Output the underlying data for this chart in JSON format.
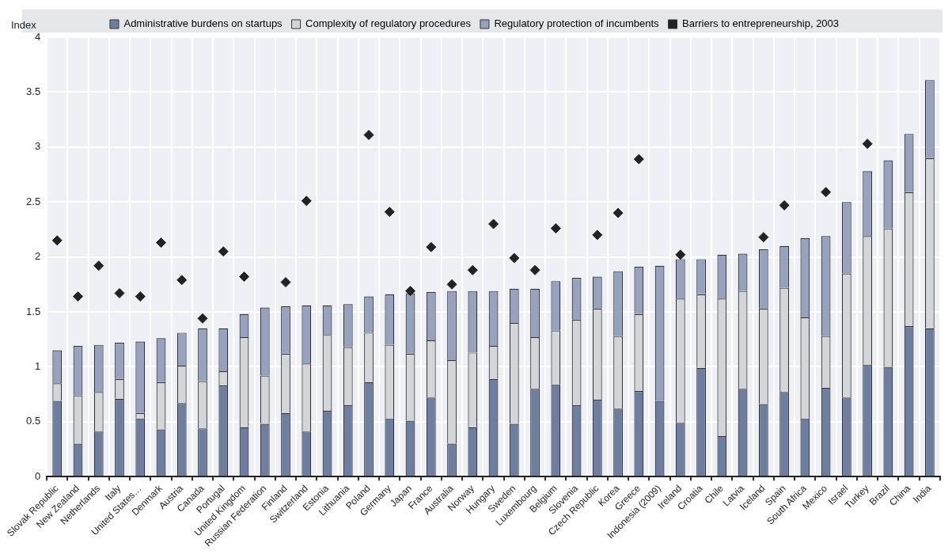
{
  "chart_data": {
    "type": "bar",
    "stacked": true,
    "ylabel": "Index",
    "legend": "top",
    "grid": true,
    "marker": "diamond",
    "ylim": [
      0,
      4
    ],
    "yticks": [
      0,
      0.5,
      1,
      1.5,
      2,
      2.5,
      3,
      3.5,
      4
    ],
    "categories": [
      "Slovak Republic",
      "New Zealand",
      "Netherlands",
      "Italy",
      "United States…",
      "Denmark",
      "Austria",
      "Canada",
      "Portugal",
      "United Kingdom",
      "Russian Federation",
      "Finland",
      "Switzerland",
      "Estonia",
      "Lithuania",
      "Poland",
      "Germany",
      "Japan",
      "France",
      "Australia",
      "Norway",
      "Hungary",
      "Sweden",
      "Luxembourg",
      "Belgium",
      "Slovenia",
      "Czech Republic",
      "Korea",
      "Greece",
      "Indonesia (2009)",
      "Ireland",
      "Croatia",
      "Chile",
      "Latvia",
      "Iceland",
      "Spain",
      "South Africa",
      "Mexico",
      "Israel",
      "Turkey",
      "Brazil",
      "China",
      "India"
    ],
    "series": [
      {
        "name": "Administrative burdens on startups",
        "color": "#6e7ea0",
        "values": [
          0.69,
          0.3,
          0.41,
          0.71,
          0.53,
          0.43,
          0.67,
          0.44,
          0.83,
          0.45,
          0.48,
          0.58,
          0.41,
          0.6,
          0.65,
          0.86,
          0.53,
          0.51,
          0.72,
          0.3,
          0.45,
          0.89,
          0.48,
          0.8,
          0.84,
          0.65,
          0.7,
          0.62,
          0.78,
          0.69,
          0.49,
          0.99,
          0.37,
          0.8,
          0.66,
          0.77,
          0.53,
          0.81,
          0.72,
          1.02,
          1.0,
          1.37,
          1.35
        ]
      },
      {
        "name": "Complexity of regulatory procedures",
        "color": "#d4d5d8",
        "values": [
          0.16,
          0.44,
          0.36,
          0.18,
          0.05,
          0.43,
          0.34,
          0.43,
          0.13,
          0.82,
          0.44,
          0.54,
          0.62,
          0.69,
          0.53,
          0.45,
          0.67,
          0.61,
          0.52,
          0.76,
          0.68,
          0.3,
          0.92,
          0.47,
          0.49,
          0.78,
          0.83,
          0.66,
          0.7,
          0,
          1.13,
          0.67,
          1.25,
          0.89,
          0.87,
          0.95,
          0.92,
          0.47,
          1.13,
          1.17,
          1.26,
          1.22,
          1.55
        ]
      },
      {
        "name": "Regulatory protection of incumbents",
        "color": "#97a2bf",
        "values": [
          0.3,
          0.45,
          0.43,
          0.33,
          0.65,
          0.4,
          0.3,
          0.48,
          0.39,
          0.21,
          0.62,
          0.43,
          0.53,
          0.27,
          0.39,
          0.33,
          0.46,
          0.55,
          0.44,
          0.63,
          0.56,
          0.5,
          0.31,
          0.44,
          0.45,
          0.38,
          0.29,
          0.59,
          0.43,
          1.23,
          0.36,
          0.32,
          0.4,
          0.34,
          0.54,
          0.38,
          0.72,
          0.91,
          0.65,
          0.59,
          0.62,
          0.53,
          0.71
        ]
      },
      {
        "name": "Barriers to entrepreneurship, 2003",
        "type": "scatter",
        "color": "#222222",
        "values": [
          2.15,
          1.64,
          1.92,
          1.67,
          1.64,
          2.13,
          1.79,
          1.44,
          2.05,
          1.82,
          null,
          1.77,
          2.51,
          null,
          null,
          3.11,
          2.41,
          1.69,
          2.09,
          1.75,
          1.88,
          2.3,
          1.99,
          1.88,
          2.26,
          null,
          2.2,
          2.4,
          2.89,
          null,
          2.02,
          null,
          null,
          null,
          2.18,
          2.47,
          null,
          2.59,
          null,
          3.03,
          null,
          null,
          null
        ]
      }
    ]
  }
}
